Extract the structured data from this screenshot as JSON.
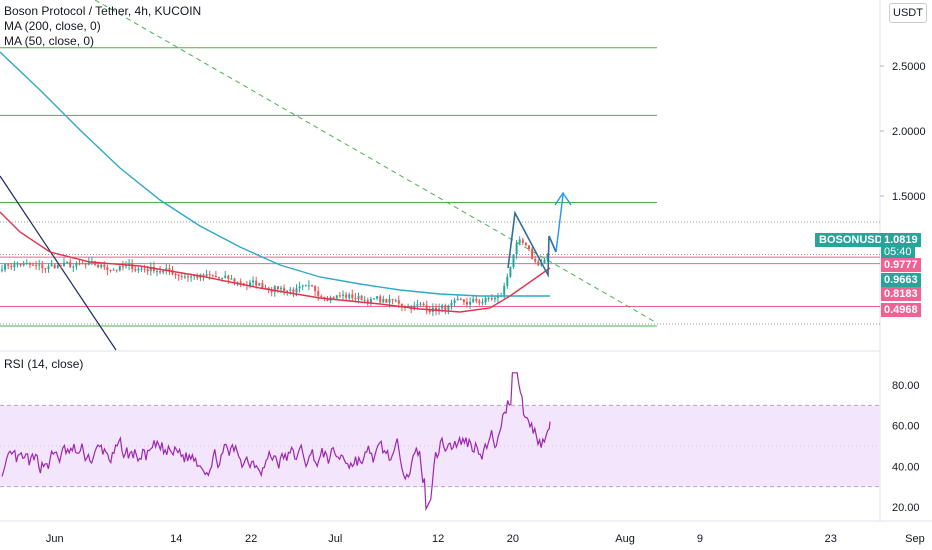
{
  "legend": {
    "title": "Boson Protocol / Tether, 4h, KUCOIN",
    "ma200": "MA (200, close, 0)",
    "ma50": "MA (50, close, 0)",
    "rsi": "RSI (14, close)"
  },
  "currency_button": "USDT",
  "symbol_tag": "BOSONUSDT",
  "colors": {
    "up": "#26a69a",
    "down": "#ef5350",
    "ma200": "#2ea9c7",
    "ma50": "#e0344b",
    "green_level": "#4caf50",
    "pink_level": "#f06292",
    "pattern": "#2f6f9f",
    "diag": "#1f2a5c",
    "rsi": "#9c27b0",
    "rsi_band": "#f3e5fb"
  },
  "price_axis": {
    "ticks": [
      "2.5000",
      "2.0000",
      "1.5000"
    ],
    "tags": [
      {
        "text": "1.0819",
        "color": "#26a69a",
        "sub": "05:40"
      },
      {
        "text": "0.9777",
        "color": "#f06292"
      },
      {
        "text": "0.9663",
        "color": "#26a69a"
      },
      {
        "text": "0.8183",
        "color": "#f06292"
      },
      {
        "text": "0.4968",
        "color": "#f06292"
      }
    ]
  },
  "rsi_axis": {
    "ticks": [
      "80.00",
      "60.00",
      "40.00",
      "20.00"
    ]
  },
  "time_axis": {
    "ticks": [
      "Jun",
      "14",
      "22",
      "Jul",
      "12",
      "20",
      "Aug",
      "9",
      "23",
      "Sep"
    ]
  },
  "chart_data": {
    "type": "candlestick",
    "title": "Boson Protocol / Tether, 4h, KUCOIN",
    "x_range": [
      "2021-05-27",
      "2021-09-05"
    ],
    "ylim": [
      0.3,
      3.0
    ],
    "levels_green": [
      2.64,
      2.12,
      1.45,
      0.5
    ],
    "levels_pink": [
      1.03,
      0.98,
      0.65
    ],
    "dotted_levels": [
      1.3,
      1.05
    ],
    "projection": [
      {
        "date": "2021-07-27",
        "price": 0.98
      },
      {
        "date": "2021-07-29",
        "price": 1.46
      }
    ],
    "last_price": 1.0819,
    "countdown": "05:40",
    "rsi": {
      "upper_band": 70,
      "lower_band": 30,
      "ylim": [
        10,
        90
      ],
      "min_value": 17,
      "max_value": 88,
      "last_value": 62
    }
  }
}
